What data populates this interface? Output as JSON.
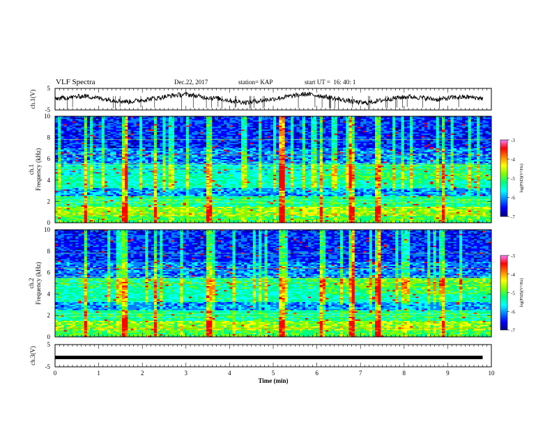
{
  "header": {
    "title": "VLF Spectra",
    "date": "Dec.22, 2017",
    "station": "station= KAP",
    "start": "start UT =  16: 40: 1"
  },
  "colors": {
    "trace": "#000000",
    "colormap": [
      "#000080",
      "#0000ff",
      "#0080ff",
      "#00ffff",
      "#00ff80",
      "#80ff00",
      "#ffff00",
      "#ff8000",
      "#ff0000",
      "#ff80ff",
      "#ffffff"
    ]
  },
  "chart_data": [
    {
      "type": "line",
      "ylabel": "ch.1(V)",
      "ylim": [
        -5,
        5
      ],
      "yticks": [
        "5",
        "-5"
      ],
      "xlim": [
        0,
        10
      ],
      "description_series": "noisy waveform centered near 0 V, amplitude about ±2.5 V",
      "waveform_levels_v": [
        0.2,
        0.8,
        1.5,
        0.5,
        -0.5,
        -1.2,
        -0.3,
        0.6,
        1.8,
        2.2,
        1.0,
        0.4,
        -0.8,
        -1.5,
        -0.6,
        0.3,
        1.4,
        2.4,
        1.6,
        0.2,
        -0.9,
        -1.8,
        -0.7,
        0.5,
        1.2,
        0.6,
        -0.2,
        0.8,
        1.0,
        0.4
      ]
    },
    {
      "type": "heatmap",
      "channel": "ch.1",
      "ylabel": "Frequency (kHz)",
      "ylim": [
        0,
        10
      ],
      "yticks": [
        "0",
        "2",
        "4",
        "6",
        "8",
        "10"
      ],
      "xlim": [
        0,
        10
      ],
      "colorbar_label": "log(PSD)(V²/Hz)",
      "colorbar_ticks": [
        "-3",
        "-4",
        "-5",
        "-6",
        "-7"
      ],
      "colorbar_range": [
        -7,
        -3
      ],
      "burst_times_min": [
        0.7,
        1.6,
        2.3,
        3.55,
        5.2,
        6.1,
        6.8,
        7.4,
        8.9
      ]
    },
    {
      "type": "heatmap",
      "channel": "ch.2",
      "ylabel": "Frequency (kHz)",
      "ylim": [
        0,
        10
      ],
      "yticks": [
        "0",
        "2",
        "4",
        "6",
        "8",
        "10"
      ],
      "xlim": [
        0,
        10
      ],
      "colorbar_label": "log(PSD)(V²/Hz)",
      "colorbar_ticks": [
        "-3",
        "-4",
        "-5",
        "-6",
        "-7"
      ],
      "colorbar_range": [
        -7,
        -3
      ],
      "burst_times_min": [
        0.7,
        1.6,
        2.3,
        3.55,
        5.2,
        6.1,
        6.8,
        7.4,
        8.9
      ]
    },
    {
      "type": "line",
      "ylabel": "ch.3(V)",
      "ylim": [
        -5,
        5
      ],
      "yticks": [
        "5",
        "-5"
      ],
      "xlim": [
        0,
        10
      ],
      "xlabel": "Time (min)",
      "xticks": [
        "0",
        "1",
        "2",
        "3",
        "4",
        "5",
        "6",
        "7",
        "8",
        "9",
        "10"
      ],
      "constant_value_v": -0.8
    }
  ]
}
